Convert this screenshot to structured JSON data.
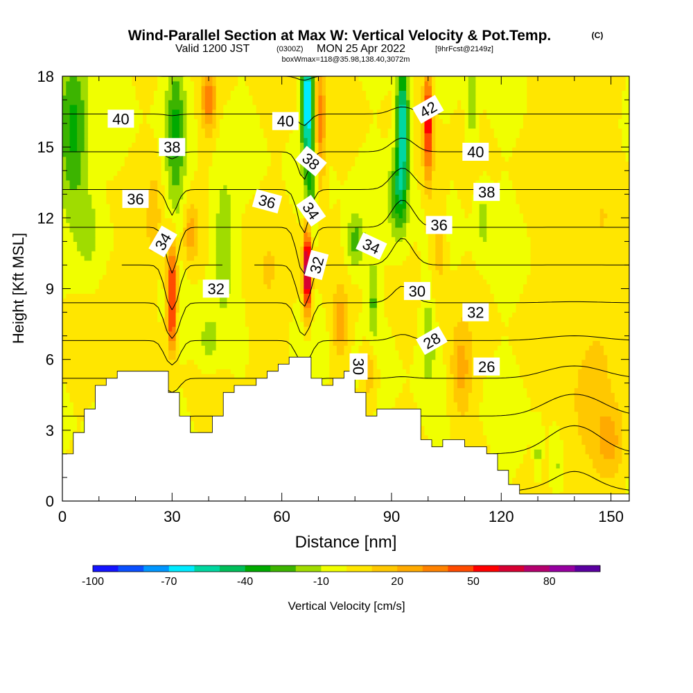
{
  "title": {
    "line1": "Wind-Parallel Section at Max W: Vertical Velocity & Pot.Temp.",
    "copyright": "(C)",
    "line2_a": "Valid 1200 JST",
    "line2_b": "(0300Z)",
    "line2_c": "MON 25 Apr 2022",
    "line2_d": "[9hrFcst@2149z]",
    "line3": "boxWmax=118@35.98,138.40,3072m"
  },
  "colors": {
    "background": "#FFFFFF",
    "frame": "#000000",
    "contour": "#000000",
    "terrain": "#FFFFFF"
  },
  "chart_data": {
    "type": "heatmap",
    "xlabel": "Distance [nm]",
    "ylabel": "Height [Kft MSL]",
    "xlim": [
      0,
      155
    ],
    "ylim": [
      0,
      18
    ],
    "x_ticks": [
      "0",
      "30",
      "60",
      "90",
      "120",
      "150"
    ],
    "y_ticks": [
      "0",
      "3",
      "6",
      "9",
      "12",
      "15",
      "18"
    ],
    "colorbar": {
      "label": "Vertical Velocity [cm/s]",
      "tick_labels": [
        "-100",
        "-70",
        "-40",
        "-10",
        "20",
        "50",
        "80"
      ],
      "bins": [
        {
          "lo": -100,
          "hi": -90,
          "color": "#1414FF"
        },
        {
          "lo": -90,
          "hi": -80,
          "color": "#0A50FF"
        },
        {
          "lo": -80,
          "hi": -70,
          "color": "#0096FF"
        },
        {
          "lo": -70,
          "hi": -60,
          "color": "#00EBFF"
        },
        {
          "lo": -60,
          "hi": -50,
          "color": "#00D7A0"
        },
        {
          "lo": -50,
          "hi": -40,
          "color": "#00BE5A"
        },
        {
          "lo": -40,
          "hi": -30,
          "color": "#00AA00"
        },
        {
          "lo": -30,
          "hi": -20,
          "color": "#3CB400"
        },
        {
          "lo": -20,
          "hi": -10,
          "color": "#A0DC00"
        },
        {
          "lo": -10,
          "hi": 0,
          "color": "#F0FF00"
        },
        {
          "lo": 0,
          "hi": 10,
          "color": "#FFE600"
        },
        {
          "lo": 10,
          "hi": 20,
          "color": "#FFC800"
        },
        {
          "lo": 20,
          "hi": 30,
          "color": "#FFAA00"
        },
        {
          "lo": 30,
          "hi": 40,
          "color": "#FF8200"
        },
        {
          "lo": 40,
          "hi": 50,
          "color": "#FF4B00"
        },
        {
          "lo": 50,
          "hi": 60,
          "color": "#FF0000"
        },
        {
          "lo": 60,
          "hi": 70,
          "color": "#D70032"
        },
        {
          "lo": 70,
          "hi": 80,
          "color": "#B4006E"
        },
        {
          "lo": 80,
          "hi": 90,
          "color": "#9600A0"
        },
        {
          "lo": 90,
          "hi": 100,
          "color": "#5A00A0"
        }
      ]
    },
    "terrain": [
      [
        0,
        2.0
      ],
      [
        3,
        2.0
      ],
      [
        3,
        2.9
      ],
      [
        6,
        2.9
      ],
      [
        6,
        3.9
      ],
      [
        9,
        3.9
      ],
      [
        9,
        4.9
      ],
      [
        12,
        4.9
      ],
      [
        12,
        5.2
      ],
      [
        15,
        5.2
      ],
      [
        15,
        5.5
      ],
      [
        18,
        5.5
      ],
      [
        29,
        5.5
      ],
      [
        29,
        4.6
      ],
      [
        32,
        4.6
      ],
      [
        32,
        3.6
      ],
      [
        35,
        3.6
      ],
      [
        35,
        2.9
      ],
      [
        41,
        2.9
      ],
      [
        41,
        3.6
      ],
      [
        44,
        3.6
      ],
      [
        44,
        4.6
      ],
      [
        47,
        4.6
      ],
      [
        47,
        4.9
      ],
      [
        53,
        4.9
      ],
      [
        53,
        5.2
      ],
      [
        56,
        5.2
      ],
      [
        56,
        5.5
      ],
      [
        59,
        5.5
      ],
      [
        59,
        5.8
      ],
      [
        62,
        5.8
      ],
      [
        62,
        6.1
      ],
      [
        68,
        6.1
      ],
      [
        68,
        5.2
      ],
      [
        71,
        5.2
      ],
      [
        71,
        4.9
      ],
      [
        74,
        4.9
      ],
      [
        74,
        5.2
      ],
      [
        77,
        5.2
      ],
      [
        77,
        5.5
      ],
      [
        80,
        5.5
      ],
      [
        80,
        4.6
      ],
      [
        83,
        4.6
      ],
      [
        83,
        3.6
      ],
      [
        86,
        3.6
      ],
      [
        86,
        3.9
      ],
      [
        98,
        3.9
      ],
      [
        98,
        2.6
      ],
      [
        101,
        2.6
      ],
      [
        101,
        2.3
      ],
      [
        104,
        2.3
      ],
      [
        104,
        2.6
      ],
      [
        110,
        2.6
      ],
      [
        110,
        2.3
      ],
      [
        116,
        2.3
      ],
      [
        116,
        2.0
      ],
      [
        119,
        2.0
      ],
      [
        119,
        1.3
      ],
      [
        122,
        1.3
      ],
      [
        122,
        0.7
      ],
      [
        125,
        0.7
      ],
      [
        125,
        0.3
      ],
      [
        155,
        0.3
      ]
    ],
    "w_features": [
      {
        "x": 3,
        "y": 15.5,
        "value": -35,
        "sx": 4,
        "sy": 3.5
      },
      {
        "x": 7,
        "y": 11.5,
        "value": -15,
        "sx": 3,
        "sy": 1.8
      },
      {
        "x": 31,
        "y": 15.5,
        "value": -30,
        "sx": 2.5,
        "sy": 3.5
      },
      {
        "x": 30,
        "y": 9.5,
        "value": 52,
        "sx": 1.4,
        "sy": 1.8
      },
      {
        "x": 30,
        "y": 7.3,
        "value": 38,
        "sx": 1.2,
        "sy": 1.2
      },
      {
        "x": 40,
        "y": 17,
        "value": 35,
        "sx": 2,
        "sy": 1.5
      },
      {
        "x": 44,
        "y": 11,
        "value": -20,
        "sx": 3,
        "sy": 3
      },
      {
        "x": 40,
        "y": 6.8,
        "value": -15,
        "sx": 3,
        "sy": 1.2
      },
      {
        "x": 35,
        "y": 11.3,
        "value": 25,
        "sx": 2,
        "sy": 1.3
      },
      {
        "x": 25,
        "y": 12,
        "value": 15,
        "sx": 2,
        "sy": 2
      },
      {
        "x": 67,
        "y": 17,
        "value": -75,
        "sx": 1.5,
        "sy": 2.5
      },
      {
        "x": 68,
        "y": 13.5,
        "value": -25,
        "sx": 1.5,
        "sy": 2
      },
      {
        "x": 67,
        "y": 9.8,
        "value": 88,
        "sx": 1.1,
        "sy": 1.8
      },
      {
        "x": 70.5,
        "y": 16,
        "value": 35,
        "sx": 1.4,
        "sy": 3
      },
      {
        "x": 80,
        "y": 11,
        "value": -25,
        "sx": 2.5,
        "sy": 1.2
      },
      {
        "x": 85,
        "y": 8.5,
        "value": -22,
        "sx": 1.5,
        "sy": 1.8
      },
      {
        "x": 76,
        "y": 7.5,
        "value": 25,
        "sx": 2,
        "sy": 1.5
      },
      {
        "x": 84,
        "y": 5.5,
        "value": 22,
        "sx": 2,
        "sy": 1.2
      },
      {
        "x": 93,
        "y": 16,
        "value": -65,
        "sx": 1.6,
        "sy": 2.5
      },
      {
        "x": 92,
        "y": 13,
        "value": -35,
        "sx": 2.5,
        "sy": 1.8
      },
      {
        "x": 100,
        "y": 16,
        "value": 58,
        "sx": 1.3,
        "sy": 2.5
      },
      {
        "x": 103,
        "y": 11,
        "value": 15,
        "sx": 2,
        "sy": 3
      },
      {
        "x": 100,
        "y": 7,
        "value": -18,
        "sx": 2,
        "sy": 2
      },
      {
        "x": 109,
        "y": 5.5,
        "value": 25,
        "sx": 3,
        "sy": 2
      },
      {
        "x": 115,
        "y": 12,
        "value": -14,
        "sx": 2,
        "sy": 1.5
      },
      {
        "x": 112,
        "y": 17,
        "value": -20,
        "sx": 1.5,
        "sy": 2
      },
      {
        "x": 130,
        "y": 2.0,
        "value": -15,
        "sx": 1,
        "sy": 1
      },
      {
        "x": 135,
        "y": 1.5,
        "value": -12,
        "sx": 1.5,
        "sy": 1
      },
      {
        "x": 143,
        "y": 3.5,
        "value": 14,
        "sx": 6,
        "sy": 2.5
      },
      {
        "x": 150,
        "y": 2.5,
        "value": 22,
        "sx": 4,
        "sy": 1.5
      },
      {
        "x": 146,
        "y": 10,
        "value": 8,
        "sx": 10,
        "sy": 5
      },
      {
        "x": 15,
        "y": 8,
        "value": 8,
        "sx": 6,
        "sy": 3
      },
      {
        "x": 55,
        "y": 9,
        "value": 9,
        "sx": 6,
        "sy": 3
      },
      {
        "x": 140,
        "y": 17,
        "value": 12,
        "sx": 8,
        "sy": 1.5
      }
    ],
    "theta_levels": [
      22,
      24,
      26,
      28,
      30,
      32,
      34,
      36,
      38,
      40,
      42,
      44
    ],
    "theta_base": {
      "theta_at_ground": 21.5,
      "lapse": 1.25
    },
    "theta_perturbations": [
      {
        "x": 30,
        "y": 9,
        "dtheta": 2.5,
        "sx": 2.5,
        "sy": 4
      },
      {
        "x": 66,
        "y": 10,
        "dtheta": 2.5,
        "sx": 2.5,
        "sy": 5
      },
      {
        "x": 93,
        "y": 12,
        "dtheta": -1.5,
        "sx": 4,
        "sy": 4
      },
      {
        "x": 140,
        "y": 3,
        "dtheta": -1.5,
        "sx": 10,
        "sy": 3
      }
    ],
    "contour_labels": [
      {
        "text": "40",
        "x": 16,
        "y": 16.2,
        "angle": 0
      },
      {
        "text": "38",
        "x": 30,
        "y": 15.0,
        "angle": 0
      },
      {
        "text": "36",
        "x": 20,
        "y": 12.8,
        "angle": 0
      },
      {
        "text": "34",
        "x": 27.5,
        "y": 11.0,
        "angle": -60
      },
      {
        "text": "32",
        "x": 42,
        "y": 9.0,
        "angle": 0
      },
      {
        "text": "40",
        "x": 61,
        "y": 16.1,
        "angle": 0
      },
      {
        "text": "36",
        "x": 56,
        "y": 12.7,
        "angle": 15
      },
      {
        "text": "38",
        "x": 68,
        "y": 14.4,
        "angle": 40
      },
      {
        "text": "34",
        "x": 68,
        "y": 12.3,
        "angle": 55
      },
      {
        "text": "32",
        "x": 69.5,
        "y": 10.0,
        "angle": -75
      },
      {
        "text": "34",
        "x": 84.5,
        "y": 10.8,
        "angle": 25
      },
      {
        "text": "30",
        "x": 81,
        "y": 5.7,
        "angle": 90
      },
      {
        "text": "42",
        "x": 100,
        "y": 16.6,
        "angle": -30
      },
      {
        "text": "40",
        "x": 113,
        "y": 14.8,
        "angle": 0
      },
      {
        "text": "38",
        "x": 116,
        "y": 13.1,
        "angle": 0
      },
      {
        "text": "36",
        "x": 103,
        "y": 11.7,
        "angle": 0
      },
      {
        "text": "30",
        "x": 97,
        "y": 8.9,
        "angle": 0
      },
      {
        "text": "32",
        "x": 113,
        "y": 8.0,
        "angle": 0
      },
      {
        "text": "28",
        "x": 101,
        "y": 6.8,
        "angle": -30
      },
      {
        "text": "26",
        "x": 116,
        "y": 5.7,
        "angle": 0
      }
    ]
  }
}
